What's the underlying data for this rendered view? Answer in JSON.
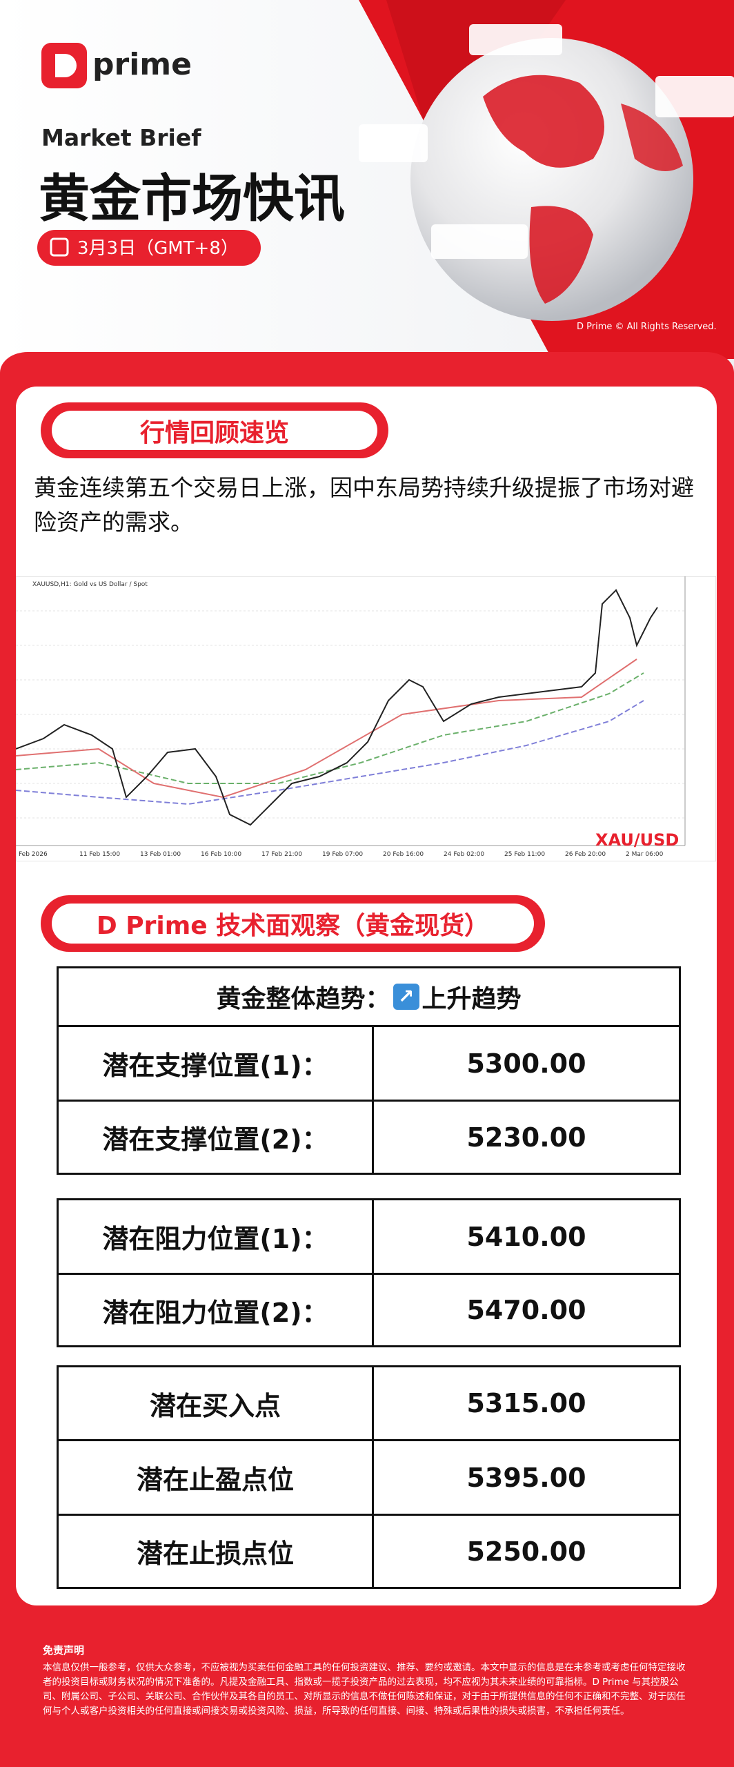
{
  "header": {
    "brand": "prime",
    "kicker": "Market Brief",
    "title": "黄金市场快讯",
    "date": "3月3日（GMT+8）",
    "copyright": "D Prime © All Rights Reserved."
  },
  "review": {
    "heading": "行情回顾速览",
    "body": "黄金连续第五个交易日上涨，因中东局势持续升级提振了市场对避险资产的需求。"
  },
  "chart_image": {
    "caption": "XAUUSD,H1: Gold vs US Dollar / Spot",
    "symbol": "XAU/USD",
    "x_labels": [
      "Feb 2026",
      "11 Feb 15:00",
      "13 Feb 01:00",
      "16 Feb 10:00",
      "17 Feb 21:00",
      "19 Feb 07:00",
      "20 Feb 16:00",
      "24 Feb 02:00",
      "25 Feb 11:00",
      "26 Feb 20:00",
      "2 Mar 06:00"
    ]
  },
  "technical": {
    "heading": "D Prime 技术面观察（黄金现货）",
    "trend_label": "黄金整体趋势：",
    "trend_value": "上升趋势",
    "tables": [
      {
        "rows": [
          [
            "潜在支撑位置(1)：",
            "5300.00"
          ],
          [
            "潜在支撑位置(2)：",
            "5230.00"
          ]
        ]
      },
      {
        "rows": [
          [
            "潜在阻力位置(1)：",
            "5410.00"
          ],
          [
            "潜在阻力位置(2)：",
            "5470.00"
          ]
        ]
      },
      {
        "rows": [
          [
            "潜在买入点",
            "5315.00"
          ],
          [
            "潜在止盈点位",
            "5395.00"
          ],
          [
            "潜在止损点位",
            "5250.00"
          ]
        ]
      }
    ]
  },
  "disclaimer": {
    "title": "免责声明",
    "body": "本信息仅供一般参考，仅供大众参考，不应被视为买卖任何金融工具的任何投资建议、推荐、要约或邀请。本文中显示的信息是在未参考或考虑任何特定接收者的投资目标或财务状况的情况下准备的。凡提及金融工具、指数或一揽子投资产品的过去表现，均不应视为其未来业绩的可靠指标。D Prime 与其控股公司、附属公司、子公司、关联公司、合作伙伴及其各自的员工、对所显示的信息不做任何陈述和保证，对于由于所提供信息的任何不正确和不完整、对于因任何与个人或客户投资相关的任何直接或间接交易或投资风险、损益，所导致的任何直接、间接、特殊或后果性的损失或损害，不承担任何责任。"
  }
}
